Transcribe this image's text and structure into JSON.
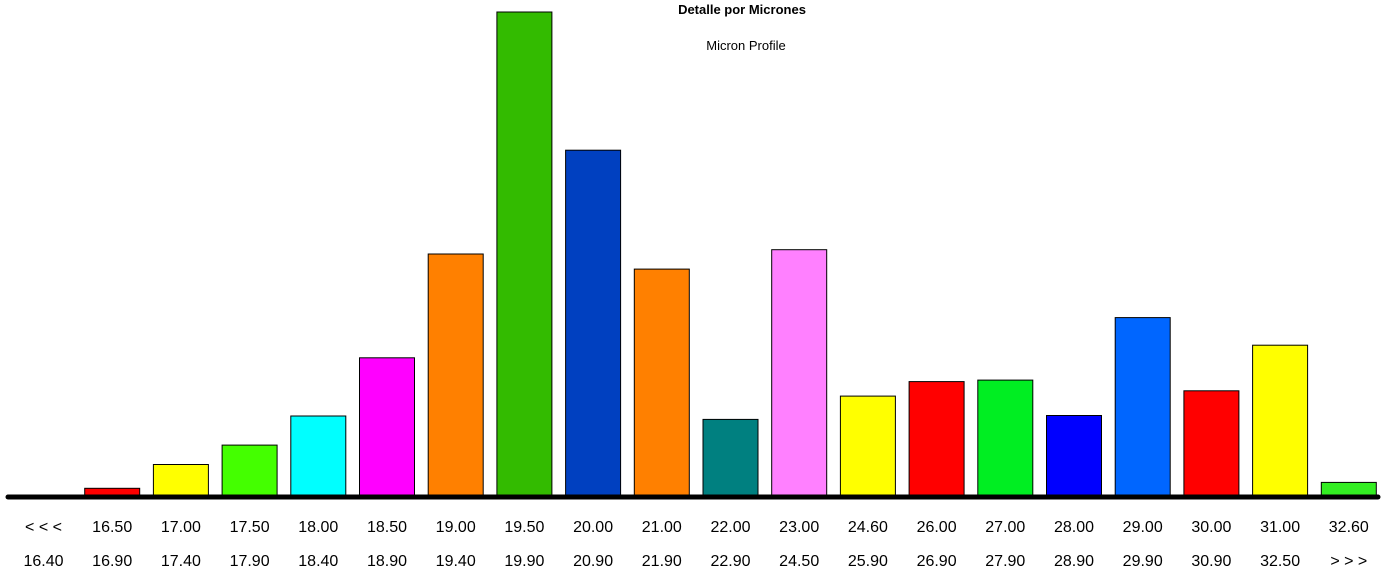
{
  "chart_data": {
    "type": "bar",
    "title": "Detalle por Micrones",
    "subtitle": "Micron Profile",
    "xlabel": "",
    "ylabel": "",
    "grid": false,
    "legend": "none",
    "ylim": [
      0,
      100
    ],
    "categories": [
      {
        "from": "< < <",
        "to": "16.40"
      },
      {
        "from": "16.50",
        "to": "16.90"
      },
      {
        "from": "17.00",
        "to": "17.40"
      },
      {
        "from": "17.50",
        "to": "17.90"
      },
      {
        "from": "18.00",
        "to": "18.40"
      },
      {
        "from": "18.50",
        "to": "18.90"
      },
      {
        "from": "19.00",
        "to": "19.40"
      },
      {
        "from": "19.50",
        "to": "19.90"
      },
      {
        "from": "20.00",
        "to": "20.90"
      },
      {
        "from": "21.00",
        "to": "21.90"
      },
      {
        "from": "22.00",
        "to": "22.90"
      },
      {
        "from": "23.00",
        "to": "24.50"
      },
      {
        "from": "24.60",
        "to": "25.90"
      },
      {
        "from": "26.00",
        "to": "26.90"
      },
      {
        "from": "27.00",
        "to": "27.90"
      },
      {
        "from": "28.00",
        "to": "28.90"
      },
      {
        "from": "29.00",
        "to": "29.90"
      },
      {
        "from": "30.00",
        "to": "30.90"
      },
      {
        "from": "31.00",
        "to": "32.50"
      },
      {
        "from": "32.60",
        "to": "> > >"
      }
    ],
    "values": [
      0,
      1.8,
      6.7,
      10.7,
      16.7,
      28.7,
      50.1,
      100,
      71.5,
      47.0,
      16.0,
      51.0,
      20.8,
      23.8,
      24.1,
      16.8,
      37.0,
      21.9,
      31.3,
      3.0
    ],
    "colors": [
      "#ffffff",
      "#ff0000",
      "#ffff00",
      "#44ff00",
      "#00ffff",
      "#ff00ff",
      "#ff8000",
      "#33bb00",
      "#0040c0",
      "#ff8000",
      "#008080",
      "#ff80ff",
      "#ffff00",
      "#ff0000",
      "#00ee22",
      "#0000ff",
      "#0066ff",
      "#ff0000",
      "#ffff00",
      "#33ee22"
    ]
  }
}
